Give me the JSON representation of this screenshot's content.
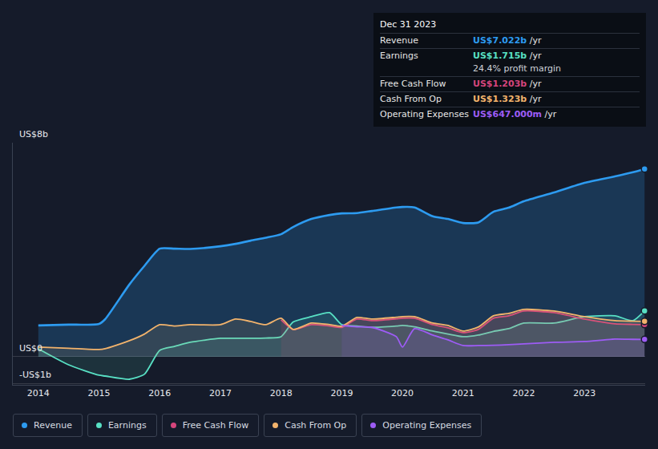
{
  "chart_data": {
    "type": "area",
    "x": [
      2014,
      2014.5,
      2015,
      2015.1,
      2015.5,
      2015.75,
      2016,
      2016.25,
      2016.5,
      2017,
      2017.25,
      2017.5,
      2017.75,
      2018,
      2018.2,
      2018.5,
      2018.8,
      2019,
      2019.25,
      2019.5,
      2019.9,
      2020,
      2020.2,
      2020.5,
      2020.75,
      2021,
      2021.25,
      2021.5,
      2021.75,
      2022,
      2022.5,
      2023,
      2023.5,
      2023.8,
      2023.99
    ],
    "xlim": [
      2013.58,
      2024.0
    ],
    "xticks": [
      2014,
      2015,
      2016,
      2017,
      2018,
      2019,
      2020,
      2021,
      2022,
      2023
    ],
    "ylim": [
      -1.05,
      8
    ],
    "yticks": [
      {
        "value": -1,
        "label": "-US$1b"
      },
      {
        "value": 0,
        "label": "US$0"
      },
      {
        "value": 8,
        "label": "US$8b"
      }
    ],
    "grid": true,
    "legend": "bottom left",
    "series": [
      {
        "name": "Revenue",
        "color": "#2d9bf0",
        "values": [
          1.17,
          1.2,
          1.23,
          1.4,
          2.7,
          3.4,
          4.04,
          4.04,
          4.03,
          4.13,
          4.22,
          4.34,
          4.45,
          4.58,
          4.85,
          5.15,
          5.3,
          5.36,
          5.37,
          5.45,
          5.58,
          5.6,
          5.58,
          5.25,
          5.15,
          5.0,
          5.02,
          5.42,
          5.57,
          5.81,
          6.14,
          6.5,
          6.74,
          6.9,
          7.022
        ]
      },
      {
        "name": "Earnings",
        "color": "#58e0c4",
        "values": [
          0.3,
          -0.3,
          -0.69,
          -0.72,
          -0.84,
          -0.65,
          0.24,
          0.39,
          0.54,
          0.69,
          0.69,
          0.69,
          0.7,
          0.75,
          1.3,
          1.5,
          1.65,
          1.2,
          1.15,
          1.1,
          1.15,
          1.17,
          1.12,
          0.96,
          0.85,
          0.75,
          0.81,
          0.95,
          1.05,
          1.26,
          1.26,
          1.5,
          1.53,
          1.35,
          1.715
        ]
      },
      {
        "name": "Free Cash Flow",
        "color": "#d6457c",
        "values": [
          null,
          null,
          null,
          null,
          null,
          null,
          null,
          null,
          null,
          null,
          null,
          null,
          null,
          1.38,
          1.02,
          1.2,
          1.15,
          1.1,
          1.41,
          1.35,
          1.42,
          1.44,
          1.44,
          1.2,
          1.08,
          0.9,
          1.02,
          1.44,
          1.53,
          1.71,
          1.65,
          1.41,
          1.23,
          1.21,
          1.203
        ]
      },
      {
        "name": "Cash From Op",
        "color": "#f2b36c",
        "values": [
          0.36,
          0.32,
          0.27,
          0.3,
          0.6,
          0.85,
          1.2,
          1.15,
          1.2,
          1.2,
          1.41,
          1.32,
          1.2,
          1.44,
          1.02,
          1.26,
          1.2,
          1.14,
          1.47,
          1.41,
          1.48,
          1.5,
          1.5,
          1.26,
          1.17,
          0.96,
          1.11,
          1.53,
          1.62,
          1.77,
          1.71,
          1.5,
          1.35,
          1.33,
          1.323
        ]
      },
      {
        "name": "Operating Expenses",
        "color": "#9d5cf5",
        "values": [
          null,
          null,
          null,
          null,
          null,
          null,
          null,
          null,
          null,
          null,
          null,
          null,
          null,
          null,
          null,
          null,
          null,
          1.17,
          1.12,
          1.1,
          0.75,
          0.36,
          1.05,
          0.81,
          0.63,
          0.42,
          0.42,
          0.43,
          0.45,
          0.48,
          0.54,
          0.57,
          0.66,
          0.65,
          0.647
        ]
      }
    ],
    "tooltip": {
      "title": "Dec 31 2023",
      "rows": [
        {
          "label": "Revenue",
          "value": "US$7.022b",
          "unit": "/yr"
        },
        {
          "label": "Earnings",
          "value": "US$1.715b",
          "unit": "/yr",
          "note": "24.4% profit margin"
        },
        {
          "label": "Free Cash Flow",
          "value": "US$1.203b",
          "unit": "/yr"
        },
        {
          "label": "Cash From Op",
          "value": "US$1.323b",
          "unit": "/yr"
        },
        {
          "label": "Operating Expenses",
          "value": "US$647.000m",
          "unit": "/yr"
        }
      ]
    }
  }
}
